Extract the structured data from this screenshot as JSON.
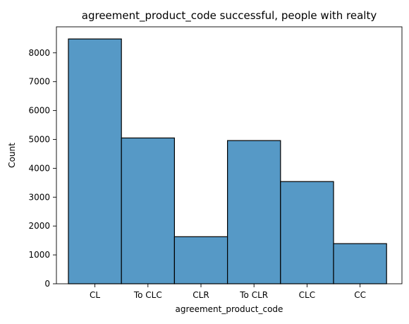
{
  "chart_data": {
    "type": "bar",
    "title": "agreement_product_code successful, people with realty",
    "xlabel": "agreement_product_code",
    "ylabel": "Count",
    "categories": [
      "CL",
      "To CLC",
      "CLR",
      "To CLR",
      "CLC",
      "CC"
    ],
    "values": [
      8480,
      5050,
      1630,
      4960,
      3540,
      1390
    ],
    "ylim": [
      0,
      8900
    ],
    "yticks": [
      0,
      1000,
      2000,
      3000,
      4000,
      5000,
      6000,
      7000,
      8000
    ],
    "grid": false,
    "bar_color": "#5699c6",
    "bar_edge_color": "#000000"
  }
}
